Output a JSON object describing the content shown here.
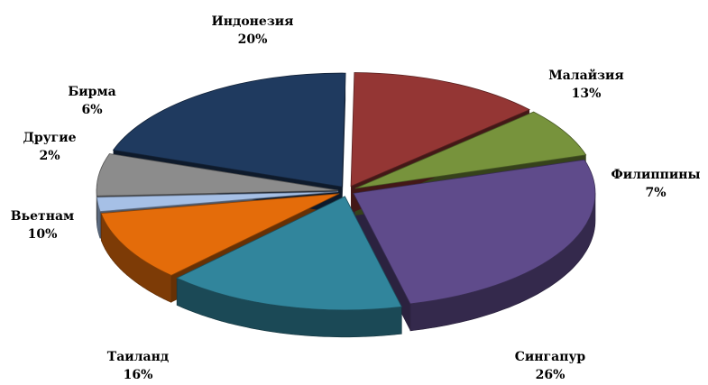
{
  "chart_data": {
    "type": "pie",
    "style": "3d-exploded",
    "title": "",
    "slices": [
      {
        "name": "Индонезия",
        "value": 20,
        "label": "20%",
        "color": "#1f3a5f"
      },
      {
        "name": "Малайзия",
        "value": 13,
        "label": "13%",
        "color": "#943634"
      },
      {
        "name": "Филиппины",
        "value": 7,
        "label": "7%",
        "color": "#77933c"
      },
      {
        "name": "Сингапур",
        "value": 26,
        "label": "26%",
        "color": "#5f4b8b"
      },
      {
        "name": "Таиланд",
        "value": 16,
        "label": "16%",
        "color": "#31859c"
      },
      {
        "name": "Вьетнам",
        "value": 10,
        "label": "10%",
        "color": "#e46c0a"
      },
      {
        "name": "Другие",
        "value": 2,
        "label": "2%",
        "color": "#a6c0e6"
      },
      {
        "name": "Бирма",
        "value": 6,
        "label": "6%",
        "color": "#8c8c8c"
      }
    ]
  }
}
